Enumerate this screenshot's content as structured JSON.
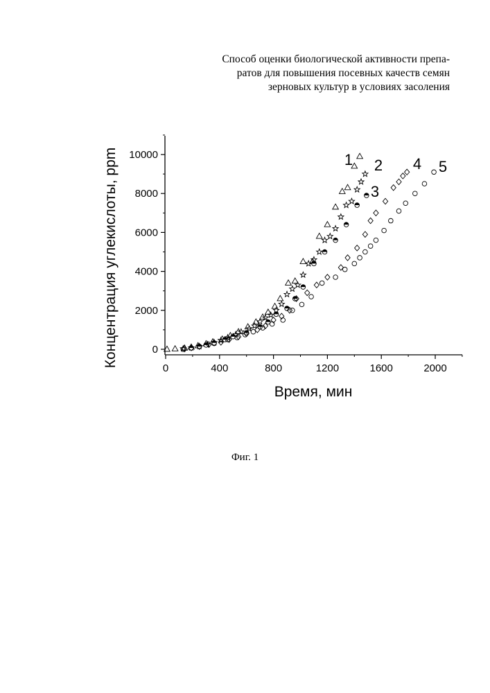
{
  "header": {
    "lines": [
      "Способ оценки биологической активности препа-",
      "ратов для повышения посевных качеств семян",
      "зерновых культур в условиях засоления"
    ]
  },
  "caption": "Фиг. 1",
  "chart_data": {
    "type": "scatter",
    "title": "",
    "xlabel": "Время, мин",
    "ylabel": "Концентрация углекислоты, ppm",
    "xlim": [
      0,
      2200
    ],
    "ylim": [
      -300,
      11000
    ],
    "xticks": [
      0,
      400,
      800,
      1200,
      1600,
      2000
    ],
    "yticks": [
      0,
      2000,
      4000,
      6000,
      8000,
      10000
    ],
    "grid": false,
    "series": [
      {
        "name": "1",
        "marker": "triangle",
        "x": [
          10,
          70,
          140,
          190,
          240,
          300,
          350,
          420,
          480,
          540,
          610,
          670,
          720,
          760,
          810,
          850,
          910,
          960,
          1020,
          1090,
          1140,
          1200,
          1260,
          1310,
          1350,
          1400,
          1440
        ],
        "y": [
          0,
          20,
          60,
          110,
          180,
          280,
          380,
          520,
          700,
          900,
          1150,
          1400,
          1650,
          1900,
          2200,
          2600,
          3400,
          3500,
          4500,
          4500,
          5800,
          6400,
          7300,
          8100,
          8300,
          9400,
          9900
        ]
      },
      {
        "name": "2",
        "marker": "star",
        "x": [
          130,
          190,
          250,
          310,
          360,
          410,
          460,
          520,
          560,
          620,
          660,
          700,
          740,
          780,
          820,
          860,
          900,
          940,
          980,
          1020,
          1060,
          1100,
          1140,
          1180,
          1220,
          1260,
          1300,
          1340,
          1380,
          1420,
          1450,
          1480
        ],
        "y": [
          30,
          80,
          150,
          250,
          350,
          460,
          600,
          760,
          900,
          1060,
          1200,
          1420,
          1620,
          1760,
          2000,
          2320,
          2820,
          3100,
          3300,
          3820,
          4400,
          4600,
          5000,
          5600,
          5800,
          6200,
          6800,
          7400,
          7600,
          8200,
          8600,
          9000
        ]
      },
      {
        "name": "3",
        "marker": "half-circle",
        "x": [
          190,
          250,
          300,
          360,
          440,
          500,
          600,
          700,
          760,
          820,
          900,
          960,
          1020,
          1100,
          1180,
          1260,
          1340,
          1420,
          1490
        ],
        "y": [
          70,
          140,
          220,
          330,
          500,
          650,
          850,
          1150,
          1400,
          1800,
          2100,
          2600,
          3200,
          4400,
          5000,
          5600,
          6400,
          7400,
          7900
        ]
      },
      {
        "name": "4",
        "marker": "diamond",
        "x": [
          140,
          190,
          250,
          320,
          410,
          470,
          540,
          600,
          680,
          740,
          800,
          860,
          920,
          970,
          1050,
          1120,
          1200,
          1300,
          1350,
          1420,
          1480,
          1520,
          1560,
          1630,
          1690,
          1730,
          1760,
          1790
        ],
        "y": [
          20,
          70,
          140,
          240,
          360,
          500,
          640,
          800,
          1000,
          1200,
          1500,
          1700,
          2000,
          2600,
          2900,
          3300,
          3700,
          4200,
          4700,
          5200,
          5900,
          6600,
          7000,
          7600,
          8300,
          8600,
          8900,
          9100
        ]
      },
      {
        "name": "5",
        "marker": "circle",
        "x": [
          130,
          250,
          360,
          460,
          530,
          590,
          650,
          720,
          790,
          870,
          940,
          1010,
          1080,
          1160,
          1260,
          1330,
          1400,
          1440,
          1480,
          1520,
          1560,
          1620,
          1670,
          1730,
          1780,
          1850,
          1920,
          1990
        ],
        "y": [
          0,
          150,
          300,
          500,
          600,
          750,
          900,
          1100,
          1300,
          1500,
          2000,
          2300,
          2700,
          3400,
          3700,
          4100,
          4400,
          4700,
          5000,
          5300,
          5600,
          6100,
          6600,
          7100,
          7500,
          8000,
          8500,
          9100
        ]
      }
    ]
  }
}
